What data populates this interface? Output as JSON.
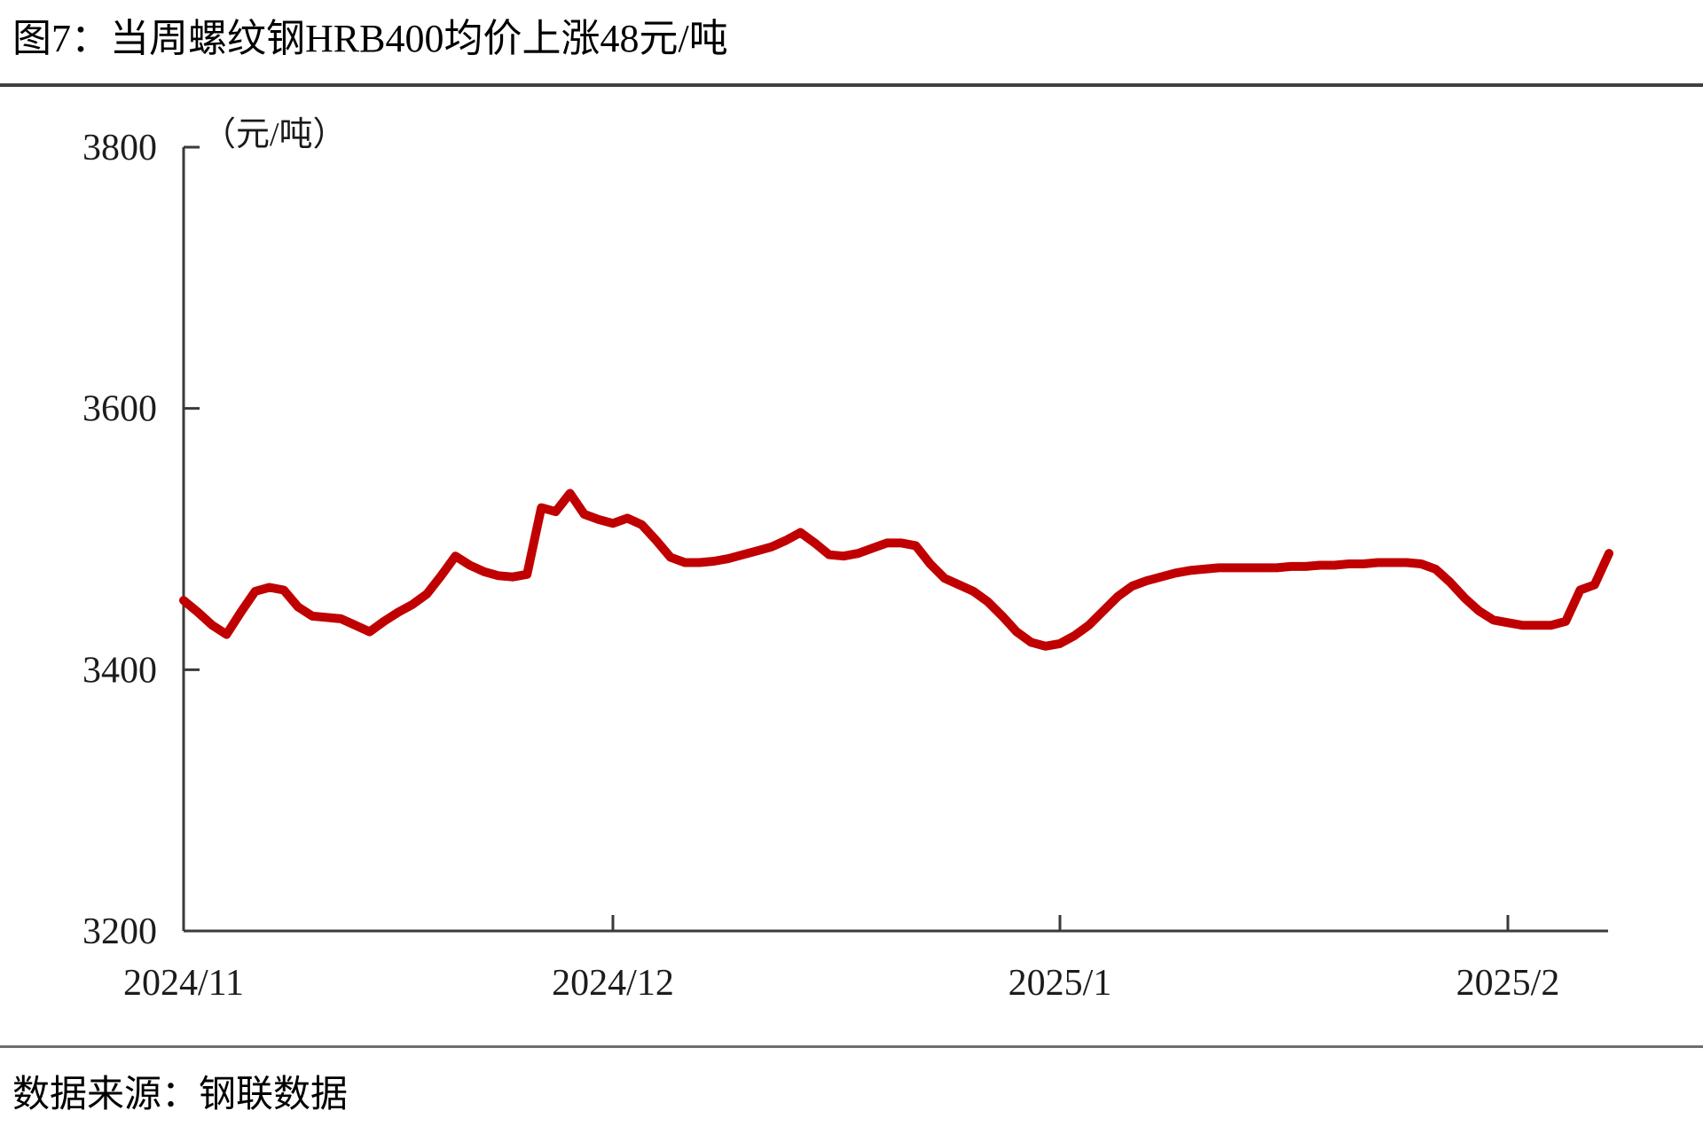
{
  "page": {
    "title": "图7：当周螺纹钢HRB400均价上涨48元/吨",
    "source": "数据来源：钢联数据"
  },
  "chart_data": {
    "type": "line",
    "title": "当周螺纹钢HRB400均价上涨48元/吨",
    "unit_label": "（元/吨）",
    "ylabel": "元/吨",
    "ylim": [
      3200,
      3800
    ],
    "yticks": [
      3200,
      3400,
      3600,
      3800
    ],
    "ytick_labels": [
      "3200",
      "3400",
      "3600",
      "3800"
    ],
    "x_ticks": [
      {
        "label": "2024/11",
        "day": 0
      },
      {
        "label": "2024/12",
        "day": 30
      },
      {
        "label": "2025/1",
        "day": 61
      },
      {
        "label": "2025/2",
        "day": 92
      }
    ],
    "grid": false,
    "legend": "none",
    "series": [
      {
        "name": "螺纹钢HRB400均价",
        "color": "#C00000",
        "start_date": "2024/11/01",
        "frequency": "daily",
        "values": [
          3453,
          3444,
          3434,
          3427,
          3444,
          3460,
          3463,
          3461,
          3448,
          3441,
          3440,
          3439,
          3434,
          3429,
          3437,
          3444,
          3450,
          3458,
          3472,
          3487,
          3480,
          3475,
          3472,
          3471,
          3473,
          3524,
          3521,
          3535,
          3519,
          3515,
          3512,
          3516,
          3511,
          3499,
          3486,
          3482,
          3482,
          3483,
          3485,
          3488,
          3491,
          3494,
          3499,
          3505,
          3497,
          3488,
          3487,
          3489,
          3493,
          3497,
          3497,
          3495,
          3481,
          3470,
          3465,
          3460,
          3452,
          3441,
          3429,
          3421,
          3418,
          3420,
          3426,
          3434,
          3445,
          3456,
          3464,
          3468,
          3471,
          3474,
          3476,
          3477,
          3478,
          3478,
          3478,
          3478,
          3478,
          3479,
          3479,
          3480,
          3480,
          3481,
          3481,
          3482,
          3482,
          3482,
          3481,
          3477,
          3467,
          3455,
          3445,
          3438,
          3436,
          3434,
          3434,
          3434,
          3437,
          3461,
          3465,
          3489
        ]
      }
    ]
  }
}
